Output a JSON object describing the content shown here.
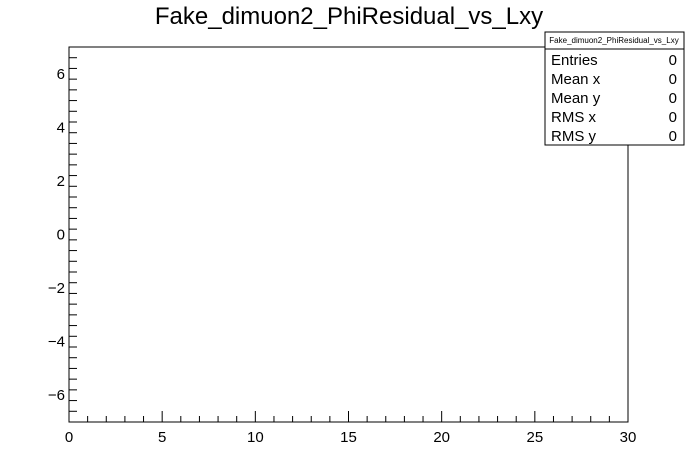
{
  "chart_data": {
    "type": "scatter",
    "title": "Fake_dimuon2_PhiResidual_vs_Lxy",
    "xlabel": "",
    "ylabel": "",
    "xlim": [
      0,
      30
    ],
    "ylim": [
      -7,
      7
    ],
    "x_ticks": [
      0,
      5,
      10,
      15,
      20,
      25,
      30
    ],
    "y_ticks": [
      -6,
      -4,
      -2,
      0,
      2,
      4,
      6
    ],
    "grid": false,
    "series": [],
    "stats_box": {
      "name": "Fake_dimuon2_PhiResidual_vs_Lxy",
      "rows": [
        {
          "label": "Entries",
          "value": "0"
        },
        {
          "label": "Mean x",
          "value": "0"
        },
        {
          "label": "Mean y",
          "value": "0"
        },
        {
          "label": "RMS x",
          "value": "0"
        },
        {
          "label": "RMS y",
          "value": "0"
        }
      ]
    }
  }
}
